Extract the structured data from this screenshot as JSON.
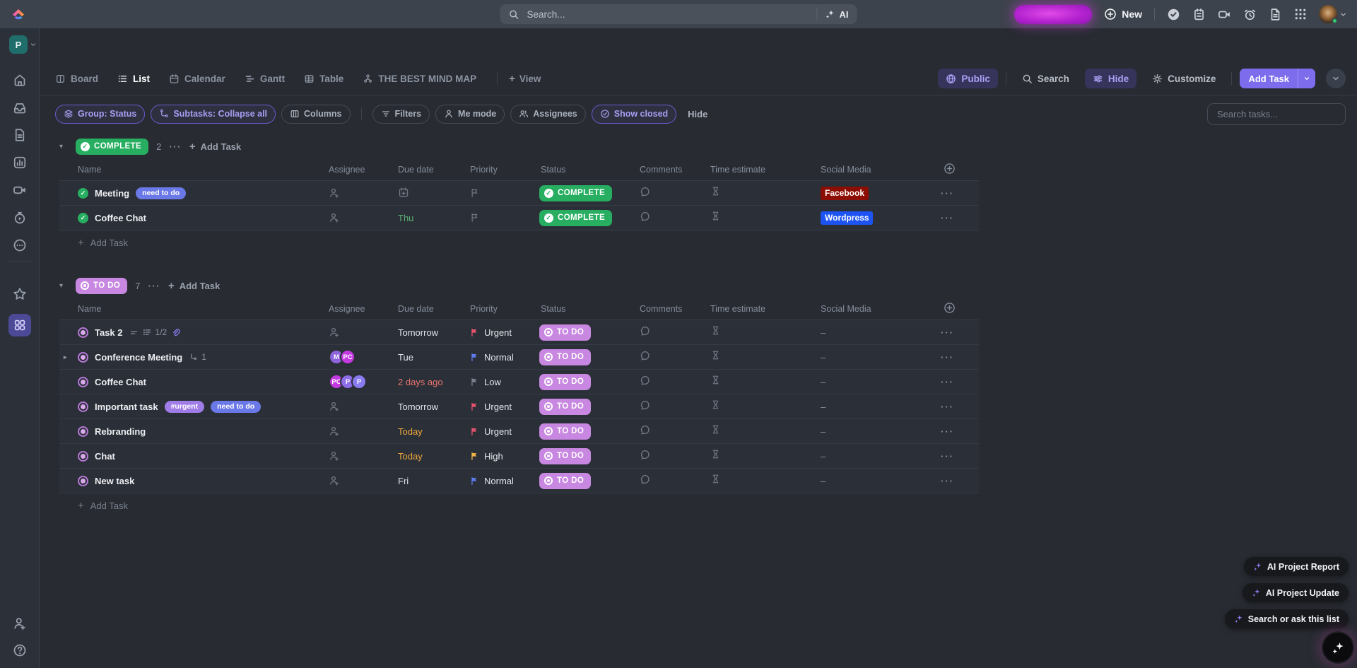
{
  "colors": {
    "accent": "#7d6ceb",
    "complete_green": "#27ae60",
    "todo_purple": "#c887e0",
    "topbar_bg": "#3d434c",
    "main_bg": "#282b32"
  },
  "topbar": {
    "search": {
      "placeholder": "Search...",
      "ai_label": "AI"
    },
    "new_label": "New",
    "action_icons": [
      "my-tasks",
      "notepad",
      "record",
      "reminders",
      "notes",
      "apps"
    ]
  },
  "workspace": {
    "initial": "P"
  },
  "sidebar": {
    "rail_top": [
      {
        "name": "home"
      },
      {
        "name": "inbox"
      },
      {
        "name": "docs"
      },
      {
        "name": "dashboards"
      },
      {
        "name": "clips"
      },
      {
        "name": "timesheets"
      },
      {
        "name": "more"
      }
    ],
    "rail_pinned": [
      {
        "name": "favorites"
      },
      {
        "name": "spaces",
        "active": true
      }
    ],
    "rail_bottom": [
      {
        "name": "invite"
      },
      {
        "name": "help"
      }
    ]
  },
  "views_bar": {
    "tabs": [
      {
        "label": "Board",
        "icon": "board"
      },
      {
        "label": "List",
        "icon": "list",
        "active": true
      },
      {
        "label": "Calendar",
        "icon": "calendar"
      },
      {
        "label": "Gantt",
        "icon": "gantt"
      },
      {
        "label": "Table",
        "icon": "table"
      },
      {
        "label": "THE BEST MIND MAP",
        "icon": "mindmap"
      }
    ],
    "add_view_label": "View",
    "right": {
      "public_label": "Public",
      "search_label": "Search",
      "hide_label": "Hide",
      "customize_label": "Customize",
      "add_task_label": "Add Task"
    }
  },
  "filter_bar": {
    "groups": [
      [
        {
          "label": "Group: Status",
          "icon": "layers",
          "accent": true
        },
        {
          "label": "Subtasks: Collapse all",
          "icon": "subtasks",
          "accent": true
        },
        {
          "label": "Columns",
          "icon": "columns",
          "accent": false
        }
      ],
      [
        {
          "label": "Filters",
          "icon": "filters",
          "accent": false
        },
        {
          "label": "Me mode",
          "icon": "person",
          "accent": false
        },
        {
          "label": "Assignees",
          "icon": "people",
          "accent": false
        },
        {
          "label": "Show closed",
          "icon": "check-circle",
          "accent": true
        }
      ]
    ],
    "hide_label": "Hide",
    "search_placeholder": "Search tasks..."
  },
  "table": {
    "columns": [
      "Name",
      "Assignee",
      "Due date",
      "Priority",
      "Status",
      "Comments",
      "Time estimate",
      "Social Media"
    ]
  },
  "groups": [
    {
      "label": "COMPLETE",
      "count": "2",
      "pill_bg": "#27ae60",
      "style": "complete",
      "add_task_label": "Add Task",
      "rows": [
        {
          "name": "Meeting",
          "tags": [
            {
              "label": "need to do",
              "color": "#6b79e8"
            }
          ],
          "assignees": [],
          "due": null,
          "priority": null,
          "social": {
            "label": "Facebook",
            "color": "#8c0d04"
          }
        },
        {
          "name": "Coffee Chat",
          "tags": [],
          "assignees": [],
          "due": {
            "label": "Thu",
            "color": "#5cb176"
          },
          "priority": null,
          "social": {
            "label": "Wordpress",
            "color": "#1d53f2"
          }
        }
      ]
    },
    {
      "label": "TO DO",
      "count": "7",
      "pill_bg": "#c887e0",
      "style": "todo",
      "add_task_label": "Add Task",
      "rows": [
        {
          "name": "Task 2",
          "has_description": true,
          "checklist": "1/2",
          "has_attachment": true,
          "assignees": [],
          "due": {
            "label": "Tomorrow",
            "color": ""
          },
          "priority": {
            "label": "Urgent",
            "color": "#e8546d"
          },
          "social": "–"
        },
        {
          "name": "Conference Meeting",
          "expandable": true,
          "subtask_count": "1",
          "assignees": [
            {
              "initials": "M",
              "color": "#8d64dd"
            },
            {
              "initials": "PC",
              "color": "#c33be0"
            }
          ],
          "due": {
            "label": "Tue",
            "color": ""
          },
          "priority": {
            "label": "Normal",
            "color": "#5d7cf0"
          },
          "social": "–"
        },
        {
          "name": "Coffee Chat",
          "assignees": [
            {
              "initials": "PC",
              "color": "#c33be0"
            },
            {
              "initials": "P",
              "color": "#8f6ce8"
            },
            {
              "initials": "P",
              "color": "#8a7cf0"
            }
          ],
          "due": {
            "label": "2 days ago",
            "color": "#e87470"
          },
          "priority": {
            "label": "Low",
            "color": "#79808f"
          },
          "social": "–"
        },
        {
          "name": "Important task",
          "tags": [
            {
              "label": "#urgent",
              "color": "#9f7ce8"
            },
            {
              "label": "need to do",
              "color": "#6b79e8"
            }
          ],
          "assignees": [],
          "due": {
            "label": "Tomorrow",
            "color": ""
          },
          "priority": {
            "label": "Urgent",
            "color": "#e8546d"
          },
          "social": "–"
        },
        {
          "name": "Rebranding",
          "assignees": [],
          "due": {
            "label": "Today",
            "color": "#eca83d"
          },
          "priority": {
            "label": "Urgent",
            "color": "#e8546d"
          },
          "social": "–"
        },
        {
          "name": "Chat",
          "assignees": [],
          "due": {
            "label": "Today",
            "color": "#eca83d"
          },
          "priority": {
            "label": "High",
            "color": "#f0b04a"
          },
          "social": "–"
        },
        {
          "name": "New task",
          "assignees": [],
          "due": {
            "label": "Fri",
            "color": ""
          },
          "priority": {
            "label": "Normal",
            "color": "#5d7cf0"
          },
          "social": "–"
        }
      ]
    }
  ],
  "ai_panel": {
    "buttons": [
      {
        "label": "AI Project Report"
      },
      {
        "label": "AI Project Update"
      },
      {
        "label": "Search or ask this list"
      }
    ]
  }
}
